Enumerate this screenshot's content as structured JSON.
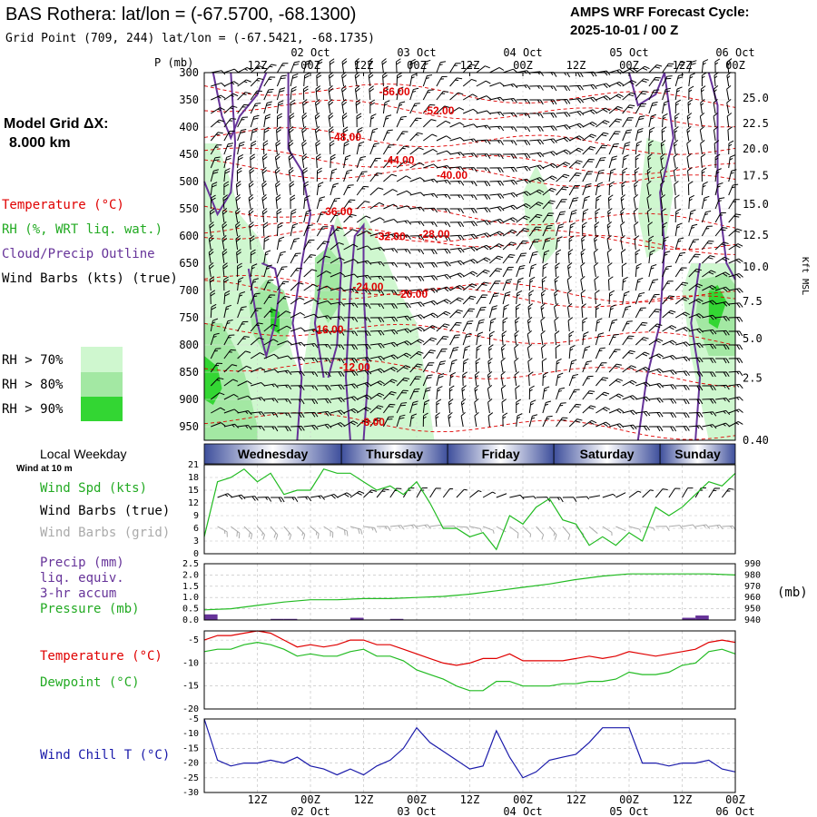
{
  "header": {
    "title": "BAS Rothera:  lat/lon = (-67.5700, -68.1300)",
    "grid_point": "Grid Point (709, 244) lat/lon = (-67.5421, -68.1735)",
    "cycle_label": "AMPS WRF Forecast Cycle:",
    "cycle_value": "2025-10-01 / 00  Z"
  },
  "time_axis": {
    "hours_span": 120,
    "ticks": [
      {
        "h": 12,
        "label": "12Z"
      },
      {
        "h": 24,
        "label": "00Z"
      },
      {
        "h": 36,
        "label": "12Z"
      },
      {
        "h": 48,
        "label": "00Z"
      },
      {
        "h": 60,
        "label": "12Z"
      },
      {
        "h": 72,
        "label": "00Z"
      },
      {
        "h": 84,
        "label": "12Z"
      },
      {
        "h": 96,
        "label": "00Z"
      },
      {
        "h": 108,
        "label": "12Z"
      },
      {
        "h": 120,
        "label": "00Z"
      }
    ],
    "dates": [
      {
        "h": 24,
        "label": "02 Oct"
      },
      {
        "h": 48,
        "label": "03 Oct"
      },
      {
        "h": 72,
        "label": "04 Oct"
      },
      {
        "h": 96,
        "label": "05 Oct"
      },
      {
        "h": 120,
        "label": "06 Oct"
      }
    ]
  },
  "model_grid": {
    "label": "Model Grid ΔX:",
    "value": "8.000 km"
  },
  "legend": {
    "temperature": "Temperature (°C)",
    "rh": "RH (%, WRT liq. wat.)",
    "cloud": "Cloud/Precip Outline",
    "wind": "Wind Barbs (kts) (true)",
    "rh70": "RH > 70%",
    "rh80": "RH > 80%",
    "rh90": "RH > 90%"
  },
  "colors": {
    "rh70": "#cff7cf",
    "rh80": "#a3e8a3",
    "rh90": "#33d633",
    "temperature": "#e00000",
    "cloud": "#663399",
    "wind_speed": "#22bb22",
    "pressure": "#22bb22",
    "precip": "#663399",
    "dewpoint": "#22bb22",
    "wind_chill": "#1a1aaa",
    "day_band": "#3e4f9c"
  },
  "chart_data": [
    {
      "type": "heatmap",
      "title": "Vertical profile: temperature, RH, cloud outline and wind",
      "ylabel": "P (mb)",
      "y2label": "Kft MSL",
      "ylim": [
        975,
        300
      ],
      "pressure_ticks": [
        300,
        350,
        400,
        450,
        500,
        550,
        600,
        650,
        700,
        750,
        800,
        850,
        900,
        950
      ],
      "height_ticks": [
        {
          "p": 347,
          "label": "25.0"
        },
        {
          "p": 393,
          "label": "22.5"
        },
        {
          "p": 440,
          "label": "20.0"
        },
        {
          "p": 489,
          "label": "17.5"
        },
        {
          "p": 542,
          "label": "15.0"
        },
        {
          "p": 598,
          "label": "12.5"
        },
        {
          "p": 657,
          "label": "10.0"
        },
        {
          "p": 720,
          "label": "7.5"
        },
        {
          "p": 788,
          "label": "5.0"
        },
        {
          "p": 861,
          "label": "2.5"
        },
        {
          "p": 975,
          "label": "0.40"
        }
      ],
      "isotherm_labels": [
        {
          "h": 43,
          "p": 335,
          "label": "-56.00"
        },
        {
          "h": 53,
          "p": 370,
          "label": "-52.00"
        },
        {
          "h": 32,
          "p": 418,
          "label": "-48.00"
        },
        {
          "h": 44,
          "p": 461,
          "label": "-44.00"
        },
        {
          "h": 56,
          "p": 488,
          "label": "-40.00"
        },
        {
          "h": 30,
          "p": 555,
          "label": "-36.00"
        },
        {
          "h": 42,
          "p": 601,
          "label": "-32.00"
        },
        {
          "h": 52,
          "p": 597,
          "label": "-28.00"
        },
        {
          "h": 37,
          "p": 693,
          "label": "-24.00"
        },
        {
          "h": 47,
          "p": 707,
          "label": "-20.00"
        },
        {
          "h": 28,
          "p": 772,
          "label": "-16.00"
        },
        {
          "h": 34,
          "p": 841,
          "label": "-12.00"
        },
        {
          "h": 38,
          "p": 942,
          "label": "-8.00"
        }
      ]
    },
    {
      "type": "line",
      "title": "Wind at 10 m",
      "series_name": "Wind Spd (kts)",
      "ylim": [
        0,
        21
      ],
      "yticks": [
        0,
        3,
        6,
        9,
        12,
        15,
        18,
        21
      ],
      "x": [
        0,
        3,
        6,
        9,
        12,
        15,
        18,
        21,
        24,
        27,
        30,
        33,
        36,
        39,
        42,
        45,
        48,
        51,
        54,
        57,
        60,
        63,
        66,
        69,
        72,
        75,
        78,
        81,
        84,
        87,
        90,
        93,
        96,
        99,
        102,
        105,
        108,
        111,
        114,
        117,
        120
      ],
      "values": [
        4,
        17,
        18,
        20,
        17,
        19,
        14,
        15,
        15,
        20,
        19,
        19,
        17,
        15,
        16,
        14,
        17,
        12,
        6,
        6,
        4,
        5,
        1,
        9,
        7,
        11,
        13,
        8,
        7,
        2,
        4,
        2,
        5,
        3,
        11,
        9,
        11,
        14,
        17,
        16,
        19
      ]
    },
    {
      "type": "line",
      "title": "Precip and surface pressure",
      "ylabel": "Precip (mm) liq. equiv. 3-hr accum",
      "y2label": "(mb)",
      "precip_ylim": [
        0,
        2.5
      ],
      "precip_ticks": [
        "0.0",
        "0.5",
        "1.0",
        "1.5",
        "2.0",
        "2.5"
      ],
      "pressure_ylim": [
        940,
        990
      ],
      "pressure_ticks": [
        940,
        950,
        960,
        970,
        980,
        990
      ],
      "precip_bars": [
        {
          "h": 1.5,
          "value": 0.25
        },
        {
          "h": 16.5,
          "value": 0.05
        },
        {
          "h": 19.5,
          "value": 0.05
        },
        {
          "h": 34.5,
          "value": 0.1
        },
        {
          "h": 43.5,
          "value": 0.05
        },
        {
          "h": 109.5,
          "value": 0.1
        },
        {
          "h": 112.5,
          "value": 0.2
        }
      ],
      "pressure": {
        "x": [
          0,
          6,
          12,
          18,
          24,
          30,
          36,
          42,
          48,
          54,
          60,
          66,
          72,
          78,
          84,
          90,
          96,
          102,
          108,
          114,
          120
        ],
        "values": [
          949,
          950,
          953,
          956,
          958,
          958,
          959,
          959,
          960,
          961,
          963,
          966,
          969,
          972,
          976,
          979,
          981,
          981,
          981,
          981,
          980
        ]
      }
    },
    {
      "type": "line",
      "title": "Temperature and dewpoint",
      "ylim": [
        -20,
        -3
      ],
      "yticks": [
        -5,
        -10,
        -15,
        -20
      ],
      "x": [
        0,
        3,
        6,
        9,
        12,
        15,
        18,
        21,
        24,
        27,
        30,
        33,
        36,
        39,
        42,
        45,
        48,
        51,
        54,
        57,
        60,
        63,
        66,
        69,
        72,
        75,
        78,
        81,
        84,
        87,
        90,
        93,
        96,
        99,
        102,
        105,
        108,
        111,
        114,
        117,
        120
      ],
      "series": [
        {
          "name": "Temperature (°C)",
          "values": [
            -5,
            -4,
            -4,
            -3.5,
            -3,
            -3.5,
            -5,
            -6.5,
            -6,
            -6.5,
            -6,
            -5,
            -5,
            -6,
            -6,
            -7,
            -8,
            -9,
            -10,
            -10.5,
            -10,
            -9,
            -9,
            -8,
            -9.5,
            -9.5,
            -9.5,
            -9.5,
            -9,
            -8.5,
            -9,
            -8.5,
            -7.5,
            -8,
            -8.5,
            -8,
            -7.5,
            -7,
            -5.5,
            -5,
            -5.5
          ]
        },
        {
          "name": "Dewpoint (°C)",
          "values": [
            -7.5,
            -7,
            -7,
            -6,
            -5.5,
            -6,
            -7,
            -8.5,
            -8,
            -8.5,
            -8.5,
            -7.5,
            -7,
            -8.5,
            -8.5,
            -9.5,
            -11.5,
            -12.5,
            -13.5,
            -15,
            -16,
            -16,
            -14,
            -14,
            -15,
            -15,
            -15,
            -14.5,
            -14.5,
            -14,
            -14,
            -13.5,
            -12,
            -12.5,
            -12.5,
            -12,
            -10.5,
            -10,
            -7.5,
            -7,
            -8
          ]
        }
      ]
    },
    {
      "type": "line",
      "title": "Wind chill",
      "series_name": "Wind Chill T (°C)",
      "ylim": [
        -30,
        -5
      ],
      "yticks": [
        -5,
        -10,
        -15,
        -20,
        -25,
        -30
      ],
      "x": [
        0,
        3,
        6,
        9,
        12,
        15,
        18,
        21,
        24,
        27,
        30,
        33,
        36,
        39,
        42,
        45,
        48,
        51,
        54,
        57,
        60,
        63,
        66,
        69,
        72,
        75,
        78,
        81,
        84,
        87,
        90,
        93,
        96,
        99,
        102,
        105,
        108,
        111,
        114,
        117,
        120
      ],
      "values": [
        -5,
        -19,
        -21,
        -20,
        -20,
        -19,
        -20,
        -18,
        -21,
        -22,
        -24,
        -22,
        -24,
        -21,
        -19,
        -15,
        -8,
        -13,
        -16,
        -19,
        -22,
        -21,
        -9,
        -18,
        -25,
        -23,
        -19,
        -18,
        -17,
        -13,
        -8,
        -8,
        -8,
        -20,
        -20,
        -21,
        -20,
        -20,
        -19,
        -22,
        -23
      ]
    }
  ],
  "weekday_band": {
    "title": "Local Weekday",
    "days": [
      {
        "h0": 0,
        "h1": 31,
        "label": "Wednesday"
      },
      {
        "h0": 31,
        "h1": 55,
        "label": "Thursday"
      },
      {
        "h0": 55,
        "h1": 79,
        "label": "Friday"
      },
      {
        "h0": 79,
        "h1": 103,
        "label": "Saturday"
      },
      {
        "h0": 103,
        "h1": 120,
        "label": "Sunday"
      }
    ]
  },
  "wind_panel": {
    "subtitle": "Wind at 10 m",
    "speed_label": "Wind Spd (kts)",
    "barbs_true": "Wind Barbs (true)",
    "barbs_grid": "Wind Barbs (grid)"
  },
  "precip_panel": {
    "label1": "Precip (mm)",
    "label2": "liq. equiv.",
    "label3": "3-hr accum",
    "label4": "Pressure (mb)",
    "unit": "(mb)"
  },
  "temp_panel": {
    "temp_label": "Temperature (°C)",
    "dew_label": "Dewpoint (°C)"
  },
  "chill_panel": {
    "label": "Wind Chill T (°C)"
  }
}
